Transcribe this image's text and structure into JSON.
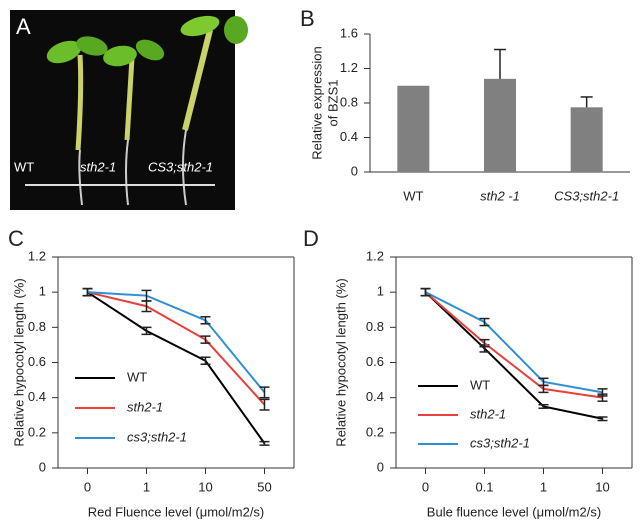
{
  "photo": {
    "label": "A",
    "captions": [
      "WT",
      "sth2-1",
      "CS3;sth2-1"
    ]
  },
  "chart_data": [
    {
      "type": "bar",
      "label": "B",
      "ylabel": [
        "Relative expression",
        "of BZS1"
      ],
      "categories": [
        "WT",
        "sth2 -1",
        "CS3;sth2-1"
      ],
      "values": [
        1.0,
        1.08,
        0.75
      ],
      "errors": [
        null,
        0.34,
        0.12
      ],
      "color": "#808080",
      "ylim": [
        0,
        1.6
      ],
      "yticks": [
        0,
        0.4,
        0.8,
        1.2,
        1.6
      ]
    },
    {
      "type": "line",
      "label": "C",
      "ylabel": "Relative hypocotyl length (%)",
      "xlabel": "Red  Fluence level (μmol/m2/s)",
      "categories": [
        "0",
        "1",
        "10",
        "50"
      ],
      "ylim": [
        0,
        1.2
      ],
      "yticks": [
        0,
        0.2,
        0.4,
        0.6,
        0.8,
        1,
        1.2
      ],
      "series": [
        {
          "name": "WT",
          "color": "#000000",
          "values": [
            1.0,
            0.78,
            0.61,
            0.14
          ],
          "errors": [
            0.02,
            0.02,
            0.02,
            0.01
          ]
        },
        {
          "name": "sth2-1",
          "color": "#e8403c",
          "values": [
            1.0,
            0.92,
            0.73,
            0.36
          ],
          "errors": [
            0.02,
            0.03,
            0.02,
            0.03
          ]
        },
        {
          "name": "cs3;sth2-1",
          "color": "#2f8fd0",
          "values": [
            1.0,
            0.98,
            0.84,
            0.43
          ],
          "errors": [
            0.02,
            0.03,
            0.02,
            0.03
          ]
        }
      ]
    },
    {
      "type": "line",
      "label": "D",
      "ylabel": "Relative hypocotyl length (%)",
      "xlabel": "Bule fluence level (μmol/m2/s)",
      "categories": [
        "0",
        "0.1",
        "1",
        "10"
      ],
      "ylim": [
        0,
        1.2
      ],
      "yticks": [
        0,
        0.2,
        0.4,
        0.6,
        0.8,
        1,
        1.2
      ],
      "series": [
        {
          "name": "WT",
          "color": "#000000",
          "values": [
            1.0,
            0.68,
            0.35,
            0.28
          ],
          "errors": [
            0.02,
            0.02,
            0.01,
            0.01
          ]
        },
        {
          "name": "sth2-1",
          "color": "#e8403c",
          "values": [
            1.0,
            0.71,
            0.45,
            0.4
          ],
          "errors": [
            0.02,
            0.02,
            0.02,
            0.02
          ]
        },
        {
          "name": "cs3;sth2-1",
          "color": "#2f8fd0",
          "values": [
            1.0,
            0.83,
            0.49,
            0.43
          ],
          "errors": [
            0.02,
            0.02,
            0.02,
            0.02
          ]
        }
      ]
    }
  ]
}
